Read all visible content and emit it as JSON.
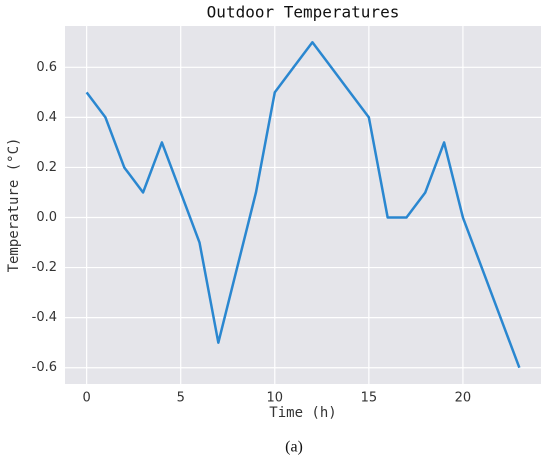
{
  "chart_data": {
    "type": "line",
    "title": "Outdoor Temperatures",
    "x_label": "Time (h)",
    "y_label": "Temperature (°C)",
    "x": [
      0,
      1,
      2,
      3,
      4,
      5,
      6,
      7,
      8,
      9,
      10,
      11,
      12,
      13,
      14,
      15,
      16,
      17,
      18,
      19,
      20,
      21,
      22,
      23
    ],
    "series": [
      {
        "name": "Temperature",
        "color": "#2a87d0",
        "values": [
          0.5,
          0.4,
          0.2,
          0.1,
          0.3,
          0.1,
          -0.1,
          -0.5,
          -0.2,
          0.1,
          0.5,
          0.6,
          0.7,
          0.6,
          0.5,
          0.4,
          0.0,
          0.0,
          0.1,
          0.3,
          0.0,
          -0.2,
          -0.4,
          -0.6
        ]
      }
    ],
    "xlim": [
      -1.15,
      24.15
    ],
    "xticks": [
      0,
      5,
      10,
      15,
      20
    ],
    "ylim": [
      -0.665,
      0.765
    ],
    "yticks": [
      -0.6,
      -0.4,
      -0.2,
      {
        "value": 0,
        "label": "0.0"
      },
      0.2,
      0.4,
      0.6
    ],
    "grid": true,
    "caption": "(a)"
  }
}
